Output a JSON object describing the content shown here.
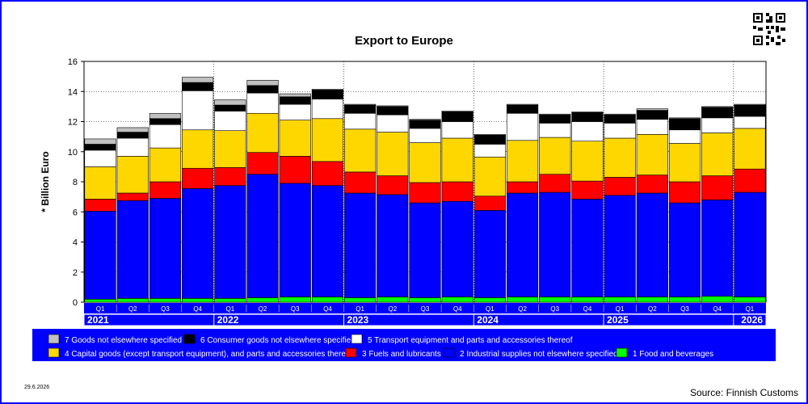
{
  "chart_data": {
    "type": "bar",
    "stacked": true,
    "title": "Export to Europe",
    "ylabel": "* Billion Euro",
    "ylim": [
      0,
      16
    ],
    "yticks": [
      0,
      2,
      4,
      6,
      8,
      10,
      12,
      14,
      16
    ],
    "grid": true,
    "categories": [
      "Q1",
      "Q2",
      "Q3",
      "Q4",
      "Q1",
      "Q2",
      "Q3",
      "Q4",
      "Q1",
      "Q2",
      "Q3",
      "Q4",
      "Q1",
      "Q2",
      "Q3",
      "Q4",
      "Q1",
      "Q2",
      "Q3",
      "Q4",
      "Q1"
    ],
    "years": [
      {
        "label": "2021",
        "start": 0,
        "end": 3
      },
      {
        "label": "2022",
        "start": 4,
        "end": 7
      },
      {
        "label": "2023",
        "start": 8,
        "end": 11
      },
      {
        "label": "2024",
        "start": 12,
        "end": 15
      },
      {
        "label": "2025",
        "start": 16,
        "end": 19
      },
      {
        "label": "2026",
        "start": 20,
        "end": 20
      }
    ],
    "series": [
      {
        "name": "1 Food and beverages",
        "color": "#00ff00",
        "values": [
          0.2,
          0.25,
          0.25,
          0.25,
          0.25,
          0.3,
          0.35,
          0.35,
          0.3,
          0.35,
          0.3,
          0.35,
          0.3,
          0.35,
          0.35,
          0.35,
          0.35,
          0.35,
          0.35,
          0.4,
          0.35
        ]
      },
      {
        "name": "2 Industrial supplies not elsewhere specified",
        "color": "#0000ff",
        "values": [
          5.85,
          6.5,
          6.65,
          7.3,
          7.5,
          8.2,
          7.55,
          7.4,
          6.95,
          6.8,
          6.3,
          6.35,
          5.8,
          6.9,
          6.95,
          6.5,
          6.75,
          6.9,
          6.25,
          6.4,
          6.95
        ]
      },
      {
        "name": "3 Fuels and lubricants",
        "color": "#ff0000",
        "values": [
          0.8,
          0.5,
          1.1,
          1.35,
          1.2,
          1.45,
          1.8,
          1.6,
          1.4,
          1.25,
          1.35,
          1.3,
          0.95,
          0.75,
          1.2,
          1.2,
          1.2,
          1.2,
          1.4,
          1.6,
          1.55
        ]
      },
      {
        "name": "4 Capital goods (except transport equipment), and parts and accessories thereof",
        "color": "#ffd700",
        "values": [
          2.15,
          2.45,
          2.25,
          2.55,
          2.45,
          2.6,
          2.4,
          2.85,
          2.85,
          2.9,
          2.65,
          2.9,
          2.6,
          2.75,
          2.45,
          2.65,
          2.6,
          2.7,
          2.55,
          2.85,
          2.7
        ]
      },
      {
        "name": "5  Transport equipment and parts and accessories thereof",
        "color": "#ffffff",
        "values": [
          1.1,
          1.2,
          1.55,
          2.6,
          1.3,
          1.35,
          1.05,
          1.3,
          1.05,
          1.15,
          0.95,
          1.1,
          0.85,
          1.8,
          0.95,
          1.3,
          1.0,
          1.0,
          0.9,
          1.0,
          0.8
        ]
      },
      {
        "name": "6 Consumer goods not elsewhere specified",
        "color": "#000000",
        "values": [
          0.4,
          0.4,
          0.4,
          0.55,
          0.4,
          0.5,
          0.5,
          0.6,
          0.55,
          0.55,
          0.55,
          0.65,
          0.6,
          0.55,
          0.55,
          0.6,
          0.55,
          0.6,
          0.75,
          0.7,
          0.75
        ]
      },
      {
        "name": "7 Goods not elsewhere specified",
        "color": "#c0c0c0",
        "values": [
          0.35,
          0.3,
          0.35,
          0.35,
          0.35,
          0.35,
          0.2,
          0.05,
          0.05,
          0.05,
          0.05,
          0.05,
          0.05,
          0.05,
          0.05,
          0.05,
          0.05,
          0.1,
          0.05,
          0.05,
          0.05
        ]
      }
    ],
    "legend_order": [
      6,
      5,
      4,
      3,
      2,
      1,
      0
    ],
    "legend_placement": "bottom"
  },
  "footer": {
    "date": "29.6.2026",
    "source": "Source: Finnish Customs"
  }
}
